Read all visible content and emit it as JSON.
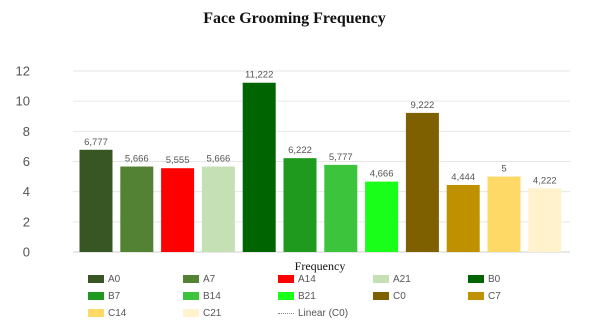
{
  "chart_data": {
    "type": "bar",
    "title": "Face Grooming  Frequency",
    "xlabel": "Frequency",
    "ylabel": "",
    "ylim": [
      0,
      12
    ],
    "yticks": [
      "0",
      "2",
      "4",
      "6",
      "8",
      "10",
      "12"
    ],
    "grid": true,
    "legend_position": "bottom",
    "categories": [
      "A0",
      "A7",
      "A14",
      "A21",
      "B0",
      "B7",
      "B14",
      "B21",
      "C0",
      "C7",
      "C14",
      "C21"
    ],
    "values": [
      6.777,
      5.666,
      5.555,
      5.666,
      11.222,
      6.222,
      5.777,
      4.666,
      9.222,
      4.444,
      5,
      4.222
    ],
    "data_labels": [
      "6,777",
      "5,666",
      "5,555",
      "5,666",
      "11,222",
      "6,222",
      "5,777",
      "4,666",
      "9,222",
      "4,444",
      "5",
      "4,222"
    ],
    "colors": [
      "#375623",
      "#548235",
      "#ff0000",
      "#c5e0b4",
      "#006400",
      "#1f9a1f",
      "#3cc43c",
      "#1aff1a",
      "#7f6000",
      "#bf9000",
      "#ffd966",
      "#fff2cc"
    ],
    "legend": [
      "A0",
      "A7",
      "A14",
      "A21",
      "B0",
      "B7",
      "B14",
      "B21",
      "C0",
      "C7",
      "C14",
      "C21",
      "Linear (C0)"
    ]
  }
}
